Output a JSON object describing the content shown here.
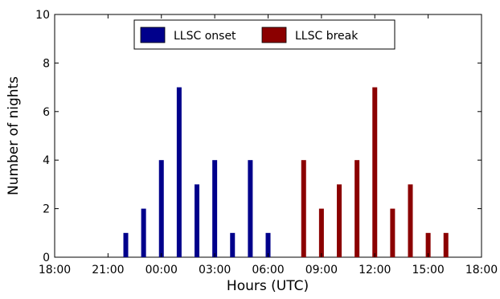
{
  "chart_data": {
    "type": "bar",
    "title": "",
    "xlabel": "Hours (UTC)",
    "ylabel": "Number of nights",
    "ylim": [
      0,
      10
    ],
    "y_ticks": [
      0,
      2,
      4,
      6,
      8,
      10
    ],
    "x_range_hours_relative_to_0000": [
      -6,
      18
    ],
    "x_ticks": [
      {
        "label": "18:00",
        "hour": -6
      },
      {
        "label": "21:00",
        "hour": -3
      },
      {
        "label": "00:00",
        "hour": 0
      },
      {
        "label": "03:00",
        "hour": 3
      },
      {
        "label": "06:00",
        "hour": 6
      },
      {
        "label": "09:00",
        "hour": 9
      },
      {
        "label": "12:00",
        "hour": 12
      },
      {
        "label": "15:00",
        "hour": 15
      },
      {
        "label": "18:00",
        "hour": 18
      }
    ],
    "legend": {
      "placement": "top-center"
    },
    "series": [
      {
        "name": "LLSC onset",
        "color": "#00008b",
        "points": [
          {
            "hour": -2,
            "value": 1
          },
          {
            "hour": -1,
            "value": 2
          },
          {
            "hour": 0,
            "value": 4
          },
          {
            "hour": 1,
            "value": 7
          },
          {
            "hour": 2,
            "value": 3
          },
          {
            "hour": 3,
            "value": 4
          },
          {
            "hour": 4,
            "value": 1
          },
          {
            "hour": 5,
            "value": 4
          },
          {
            "hour": 6,
            "value": 1
          }
        ]
      },
      {
        "name": "LLSC break",
        "color": "#8b0000",
        "points": [
          {
            "hour": 8,
            "value": 4
          },
          {
            "hour": 9,
            "value": 2
          },
          {
            "hour": 10,
            "value": 3
          },
          {
            "hour": 11,
            "value": 4
          },
          {
            "hour": 12,
            "value": 7
          },
          {
            "hour": 13,
            "value": 2
          },
          {
            "hour": 14,
            "value": 3
          },
          {
            "hour": 15,
            "value": 1
          },
          {
            "hour": 16,
            "value": 1
          }
        ]
      }
    ]
  }
}
